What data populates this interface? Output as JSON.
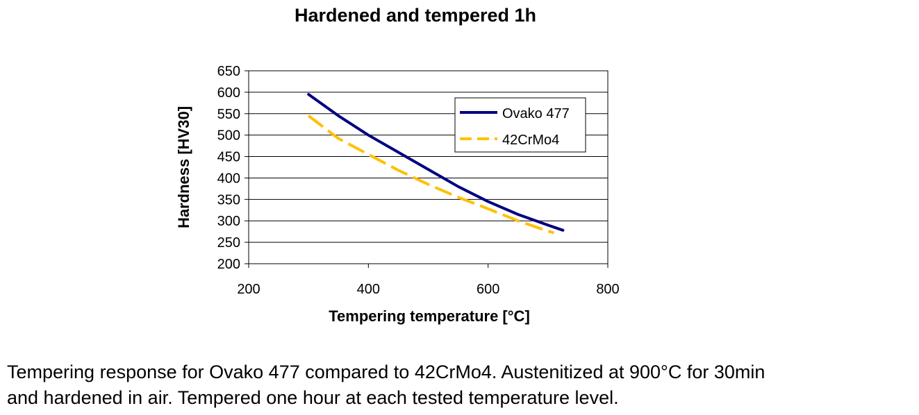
{
  "chart_data": {
    "type": "line",
    "title": "Hardened and tempered 1h",
    "xlabel": "Tempering temperature [°C]",
    "ylabel": "Hardness [HV30]",
    "xlim": [
      200,
      800
    ],
    "ylim": [
      200,
      650
    ],
    "xticks": [
      200,
      400,
      600,
      800
    ],
    "yticks": [
      200,
      250,
      300,
      350,
      400,
      450,
      500,
      550,
      600,
      650
    ],
    "grid": "horizontal",
    "legend_position": "top-right",
    "series": [
      {
        "name": "Ovako 477",
        "color": "#000080",
        "style": "solid",
        "x": [
          300,
          350,
          400,
          450,
          500,
          550,
          600,
          650,
          700,
          725
        ],
        "y": [
          595,
          545,
          500,
          460,
          420,
          380,
          345,
          315,
          290,
          278
        ]
      },
      {
        "name": "42CrMo4",
        "color": "#FFC000",
        "style": "dashed",
        "x": [
          300,
          350,
          400,
          450,
          500,
          550,
          600,
          650,
          700,
          710
        ],
        "y": [
          545,
          492,
          455,
          418,
          385,
          355,
          328,
          300,
          276,
          272
        ]
      }
    ]
  },
  "caption": {
    "line1": "Tempering response for Ovako 477 compared to 42CrMo4. Austenitized at 900°C for 30min",
    "line2": "and hardened in air. Tempered one hour at each tested temperature level."
  }
}
